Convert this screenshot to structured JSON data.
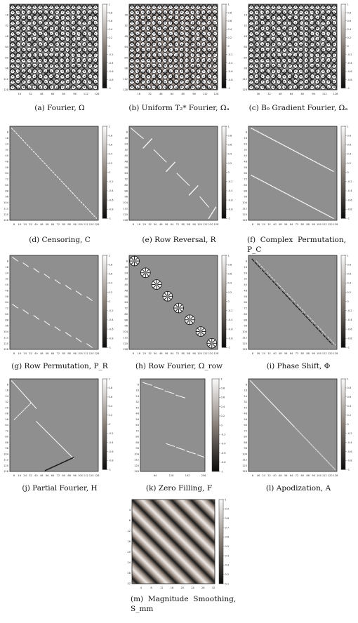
{
  "figure": {
    "panels": [
      {
        "id": "a",
        "kind": "fourier",
        "caption": "(a) Fourier, Ω",
        "cbar": [
          "1",
          "0.8",
          "0.6",
          "0.4",
          "0.2",
          "0",
          "-0.2",
          "-0.4",
          "-0.6",
          "-0.8",
          "-1"
        ]
      },
      {
        "id": "b",
        "kind": "fourier-t2",
        "caption": "(b) Uniform T₂* Fourier, Ωₐ",
        "cbar": [
          "1",
          "0.8",
          "0.6",
          "0.4",
          "0.2",
          "0",
          "-0.2",
          "-0.4",
          "-0.6",
          "-0.8",
          "-1"
        ]
      },
      {
        "id": "c",
        "kind": "fourier",
        "caption": "(c) B₀ Gradient Fourier, Ωₐ",
        "cbar": [
          "1",
          "0.8",
          "0.6",
          "0.4",
          "0.2",
          "0",
          "-0.2",
          "-0.4",
          "-0.6",
          "-0.8",
          "-1"
        ]
      },
      {
        "id": "d",
        "kind": "censoring",
        "caption": "(d) Censoring, C",
        "cbar": [
          "1",
          "0.8",
          "0.6",
          "0.4",
          "0.2",
          "0",
          "-0.2",
          "-0.4",
          "-0.6",
          "-0.8",
          "-1"
        ]
      },
      {
        "id": "e",
        "kind": "row-reversal",
        "caption": "(e) Row Reversal, R",
        "cbar": [
          "1",
          "0.8",
          "0.6",
          "0.4",
          "0.2",
          "0",
          "-0.2",
          "-0.4",
          "-0.6",
          "-0.8",
          "-1"
        ]
      },
      {
        "id": "f",
        "kind": "complex-permutation",
        "caption_line1": "(f)  Complex  Permutation,",
        "caption_line2": "P_C",
        "cbar": [
          "1",
          "0.8",
          "0.6",
          "0.4",
          "0.2",
          "0",
          "-0.2",
          "-0.4",
          "-0.6",
          "-0.8",
          "-1"
        ]
      },
      {
        "id": "g",
        "kind": "row-permutation",
        "caption": "(g) Row Permutation, P_R",
        "cbar": [
          "1",
          "0.8",
          "0.6",
          "0.4",
          "0.2",
          "0",
          "-0.2",
          "-0.4",
          "-0.6",
          "-0.8",
          "-1"
        ]
      },
      {
        "id": "h",
        "kind": "row-fourier",
        "caption": "(h) Row Fourier, Ω_row",
        "cbar": [
          "1",
          "0.8",
          "0.6",
          "0.4",
          "0.2",
          "0",
          "-0.2",
          "-0.4",
          "-0.6",
          "-0.8",
          "-1"
        ]
      },
      {
        "id": "i",
        "kind": "phase-shift",
        "caption": "(i) Phase Shift, Φ",
        "cbar": [
          "1",
          "0.8",
          "0.6",
          "0.4",
          "0.2",
          "0",
          "-0.2",
          "-0.4",
          "-0.6",
          "-0.8",
          "-1"
        ]
      },
      {
        "id": "j",
        "kind": "partial-fourier",
        "caption": "(j) Partial Fourier, H",
        "cbar": [
          "1",
          "0.8",
          "0.6",
          "0.4",
          "0.2",
          "0",
          "-0.2",
          "-0.4",
          "-0.6",
          "-0.8",
          "-1"
        ]
      },
      {
        "id": "k",
        "kind": "zero-filling",
        "caption": "(k) Zero Filling, F",
        "cbar": [
          "1",
          "0.8",
          "0.6",
          "0.4",
          "0.2",
          "0",
          "-0.2",
          "-0.4",
          "-0.6",
          "-0.8",
          "-1"
        ]
      },
      {
        "id": "l",
        "kind": "apodization",
        "caption": "(l) Apodization, A",
        "cbar": [
          "1",
          "0.8",
          "0.6",
          "0.4",
          "0.2",
          "0",
          "-0.2",
          "-0.4",
          "-0.6",
          "-0.8",
          "-1"
        ]
      },
      {
        "id": "m",
        "kind": "magnitude-smoothing",
        "caption_line1": "(m)  Magnitude  Smoothing,",
        "caption_line2": "S_mm",
        "cbar": [
          "1",
          "0.9",
          "0.8",
          "0.7",
          "0.6",
          "0.5",
          "0.4",
          "0.3",
          "0.2",
          "0.1"
        ]
      }
    ],
    "ticks": {
      "std_x": [
        "8",
        "16",
        "24",
        "32",
        "40",
        "48",
        "56",
        "64",
        "72",
        "80",
        "88",
        "96",
        "104",
        "112",
        "120",
        "128"
      ],
      "std_y": [
        "8",
        "16",
        "24",
        "32",
        "40",
        "48",
        "56",
        "64",
        "72",
        "80",
        "88",
        "96",
        "104",
        "112",
        "120",
        "128"
      ],
      "four_x": [
        "16",
        "32",
        "48",
        "64",
        "80",
        "96",
        "112",
        "128"
      ],
      "four_y": [
        "16",
        "32",
        "48",
        "64",
        "80",
        "96",
        "112",
        "128"
      ],
      "k_x": [
        "64",
        "128",
        "192",
        "256"
      ],
      "k_y": [
        "8",
        "16",
        "24",
        "32",
        "40",
        "48",
        "56",
        "64",
        "72",
        "80",
        "88",
        "96",
        "104",
        "112",
        "120",
        "128"
      ],
      "m_x": [
        "4",
        "8",
        "12",
        "16",
        "20",
        "24",
        "28",
        "32"
      ],
      "m_y": [
        "4",
        "8",
        "12",
        "16",
        "20",
        "24",
        "28",
        "32"
      ]
    }
  }
}
